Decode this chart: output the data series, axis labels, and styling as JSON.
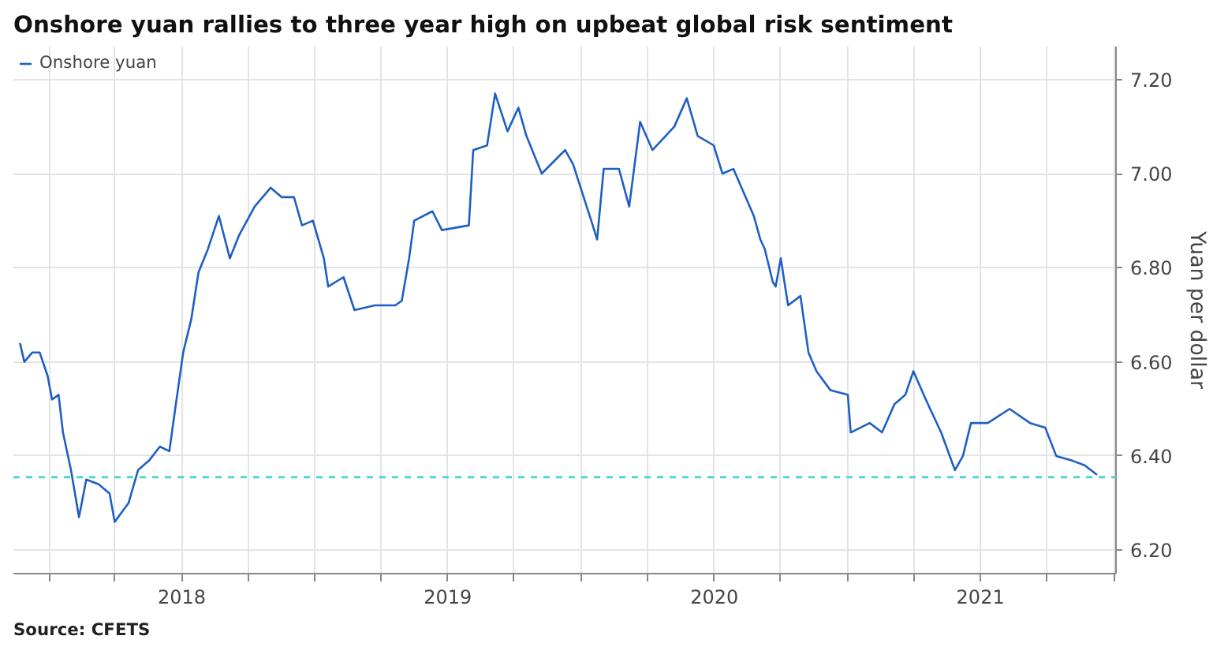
{
  "chart_data": {
    "type": "line",
    "title": "Onshore yuan rallies to three year high on upbeat global risk sentiment",
    "ylabel": "Yuan per dollar",
    "annotations": [
      "Source: CFETS"
    ],
    "legend": "top left",
    "grid": true,
    "marker": "none",
    "x": [
      "2017-11-22",
      "2017-11-28",
      "2017-12-09",
      "2017-12-19",
      "2017-12-30",
      "2018-01-05",
      "2018-01-14",
      "2018-01-20",
      "2018-01-31",
      "2018-02-11",
      "2018-02-21",
      "2018-03-10",
      "2018-03-25",
      "2018-04-01",
      "2018-04-20",
      "2018-05-03",
      "2018-05-18",
      "2018-06-02",
      "2018-06-15",
      "2018-06-23",
      "2018-07-04",
      "2018-07-15",
      "2018-07-25",
      "2018-08-07",
      "2018-08-22",
      "2018-09-06",
      "2018-09-19",
      "2018-10-10",
      "2018-11-01",
      "2018-11-16",
      "2018-12-03",
      "2018-12-14",
      "2018-12-29",
      "2019-01-13",
      "2019-01-19",
      "2019-02-09",
      "2019-02-24",
      "2019-03-24",
      "2019-04-21",
      "2019-04-30",
      "2019-05-10",
      "2019-05-17",
      "2019-06-11",
      "2019-06-24",
      "2019-07-31",
      "2019-08-06",
      "2019-08-25",
      "2019-09-05",
      "2019-09-22",
      "2019-10-07",
      "2019-10-18",
      "2019-11-08",
      "2019-12-10",
      "2019-12-21",
      "2020-01-17",
      "2020-01-23",
      "2020-02-01",
      "2020-02-22",
      "2020-03-07",
      "2020-03-22",
      "2020-04-08",
      "2020-05-08",
      "2020-05-25",
      "2020-06-09",
      "2020-07-01",
      "2020-07-13",
      "2020-07-28",
      "2020-08-25",
      "2020-09-03",
      "2020-09-09",
      "2020-09-20",
      "2020-09-24",
      "2020-10-01",
      "2020-10-11",
      "2020-10-28",
      "2020-11-08",
      "2020-11-19",
      "2020-12-08",
      "2021-01-01",
      "2021-01-05",
      "2021-01-31",
      "2021-02-17",
      "2021-03-06",
      "2021-03-21",
      "2021-04-01",
      "2021-04-18",
      "2021-05-09",
      "2021-05-28",
      "2021-06-08",
      "2021-06-19",
      "2021-07-12",
      "2021-08-11",
      "2021-09-08",
      "2021-09-29",
      "2021-10-14",
      "2021-11-05",
      "2021-11-22",
      "2021-12-09"
    ],
    "series": [
      {
        "name": "Onshore yuan",
        "color": "#1f5fc4",
        "values": [
          6.64,
          6.6,
          6.62,
          6.62,
          6.57,
          6.52,
          6.53,
          6.45,
          6.37,
          6.27,
          6.35,
          6.34,
          6.32,
          6.26,
          6.3,
          6.37,
          6.39,
          6.42,
          6.41,
          6.5,
          6.62,
          6.69,
          6.79,
          6.84,
          6.91,
          6.82,
          6.87,
          6.93,
          6.97,
          6.95,
          6.95,
          6.89,
          6.9,
          6.82,
          6.76,
          6.78,
          6.71,
          6.72,
          6.72,
          6.73,
          6.82,
          6.9,
          6.92,
          6.88,
          6.89,
          7.05,
          7.06,
          7.17,
          7.09,
          7.14,
          7.08,
          7.0,
          7.05,
          7.02,
          6.89,
          6.86,
          7.01,
          7.01,
          6.93,
          7.11,
          7.05,
          7.1,
          7.16,
          7.08,
          7.06,
          7.0,
          7.01,
          6.91,
          6.86,
          6.84,
          6.77,
          6.76,
          6.82,
          6.72,
          6.74,
          6.62,
          6.58,
          6.54,
          6.53,
          6.45,
          6.47,
          6.45,
          6.51,
          6.53,
          6.58,
          6.52,
          6.45,
          6.37,
          6.4,
          6.47,
          6.47,
          6.5,
          6.47,
          6.46,
          6.4,
          6.39,
          6.38,
          6.36
        ]
      }
    ],
    "xlim": [
      "2017-11-13",
      "2022-01-04"
    ],
    "xticks": [
      {
        "value": "2018-01-01",
        "label": null
      },
      {
        "value": "2018-04-01",
        "label": null
      },
      {
        "value": "2018-07-02",
        "label": "2018"
      },
      {
        "value": "2018-10-01",
        "label": null
      },
      {
        "value": "2019-01-01",
        "label": null
      },
      {
        "value": "2019-04-01",
        "label": null
      },
      {
        "value": "2019-07-02",
        "label": "2019"
      },
      {
        "value": "2019-10-01",
        "label": null
      },
      {
        "value": "2020-01-01",
        "label": null
      },
      {
        "value": "2020-04-01",
        "label": null
      },
      {
        "value": "2020-07-02",
        "label": "2020"
      },
      {
        "value": "2020-10-01",
        "label": null
      },
      {
        "value": "2021-01-01",
        "label": null
      },
      {
        "value": "2021-04-01",
        "label": null
      },
      {
        "value": "2021-07-02",
        "label": "2021"
      },
      {
        "value": "2021-10-01",
        "label": null
      },
      {
        "value": "2022-01-01",
        "label": null
      }
    ],
    "ylim": [
      6.15,
      7.27
    ],
    "yticks": [
      {
        "value": 6.2,
        "label": "6.20"
      },
      {
        "value": 6.4,
        "label": "6.40"
      },
      {
        "value": 6.6,
        "label": "6.60"
      },
      {
        "value": 6.8,
        "label": "6.80"
      },
      {
        "value": 7.0,
        "label": "7.00"
      },
      {
        "value": 7.2,
        "label": "7.20"
      }
    ],
    "ref_lines": [
      {
        "axis": "y",
        "value": 6.355,
        "label": null,
        "color": "#4fd8cf",
        "line_style": "dashed"
      }
    ]
  }
}
